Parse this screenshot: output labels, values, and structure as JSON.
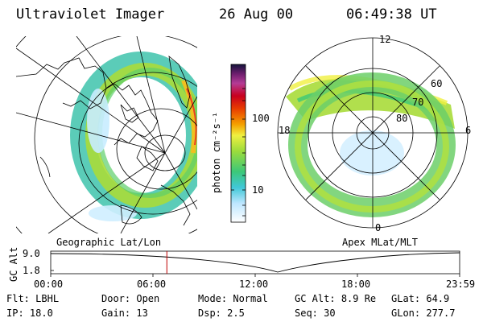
{
  "header": {
    "instrument": "Ultraviolet Imager",
    "date": "26 Aug 00",
    "time": "06:49:38 UT"
  },
  "colorbar": {
    "unit_label": "photon cm⁻²s⁻¹",
    "ticks": [
      "100",
      "10"
    ]
  },
  "left_panel": {
    "caption": "Geographic Lat/Lon"
  },
  "right_panel": {
    "caption": "Apex MLat/MLT",
    "mlt_labels": {
      "top": "12",
      "left": "18",
      "right": "6",
      "bottom": "0"
    },
    "lat_labels": [
      "60",
      "70",
      "80"
    ]
  },
  "altitude_strip": {
    "axis_label": "GC Alt",
    "y_ticks": [
      "9.0",
      "1.8"
    ],
    "time_ticks": [
      "00:00",
      "06:00",
      "12:00",
      "18:00",
      "23:59"
    ],
    "current_time_fraction": 0.284
  },
  "parameters": [
    {
      "key": "Flt:",
      "value": "LBHL"
    },
    {
      "key": "IP:",
      "value": "18.0"
    },
    {
      "key": "Door:",
      "value": "Open"
    },
    {
      "key": "Gain:",
      "value": "13"
    },
    {
      "key": "Mode:",
      "value": "Normal"
    },
    {
      "key": "Dsp:",
      "value": "2.5"
    },
    {
      "key": "GC Alt:",
      "value": "8.9 Re"
    },
    {
      "key": "Seq:",
      "value": "30"
    },
    {
      "key": "GLat:",
      "value": "64.9"
    },
    {
      "key": "GLon:",
      "value": "277.7"
    }
  ]
}
